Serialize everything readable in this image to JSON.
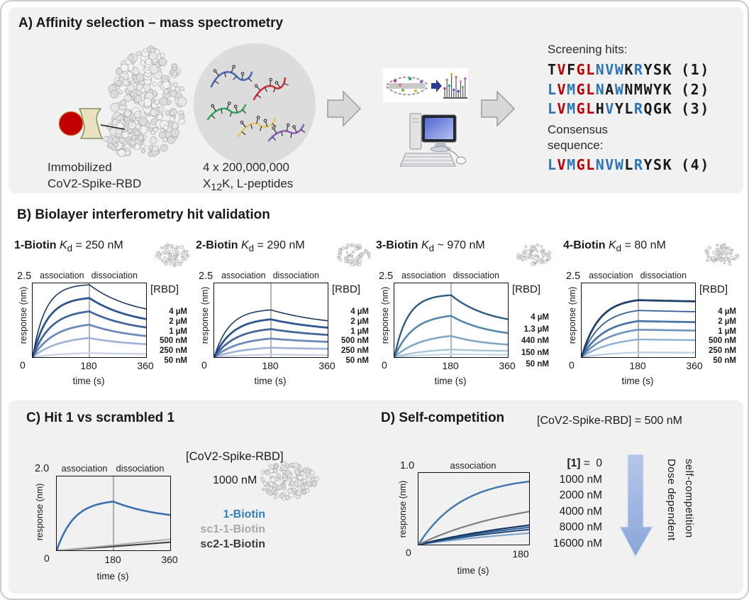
{
  "panelA": {
    "title": "A) Affinity selection – mass spectrometry",
    "immobilized_label": [
      "Immobilized",
      "CoV2-Spike-RBD"
    ],
    "library_count": "4 x 200,000,000",
    "library_x": "X",
    "library_sub": "12",
    "library_rest": "K, L-peptides",
    "screening_hits_label": "Screening hits:",
    "consensus_lines": [
      "Consensus",
      "sequence:"
    ],
    "residue_colors": {
      "k": "#1a1a1a",
      "r": "#c00000",
      "b": "#2e75b6"
    },
    "sequences": [
      {
        "residues": "TVFGLNVWKRYSK",
        "palette": "krkrrbbbkbkkk",
        "tag": "(1)"
      },
      {
        "residues": "LVMGLNAWNMWYK",
        "palette": "brbrrbkbkkkkk",
        "tag": "(2)"
      },
      {
        "residues": "LVMGLHVYLRQGK",
        "palette": "brbrrkbkkbkkk",
        "tag": "(3)"
      },
      {
        "residues": "LVMGLNVWLRYSK",
        "palette": "brbrrbbbkbkkk",
        "tag": "(4)"
      }
    ],
    "peptide_colors": [
      "#4a6cb0",
      "#cf3333",
      "#3aa76d",
      "#e5c86e",
      "#8f62b8"
    ]
  },
  "panelB": {
    "title": "B) Biolayer interferometry hit validation",
    "kd_symbol": "K",
    "kd_sub": "d"
  },
  "panelC": {
    "title": "C) Hit 1 vs scrambled 1",
    "rbd_label": "[CoV2-Spike-RBD]",
    "rbd_conc": "1000 nM",
    "legend": [
      {
        "label": "1-Biotin",
        "color": "#2e80bd"
      },
      {
        "label": "sc1-1-Biotin",
        "color": "#a8a8a8"
      },
      {
        "label": "sc2-1-Biotin",
        "color": "#3d3d3d"
      }
    ]
  },
  "panelD": {
    "title": "D) Self-competition",
    "rbd_text": "[CoV2-Spike-RBD] = 500 nM",
    "list_bold": "[1]",
    "list_eq": "=",
    "items": [
      "0",
      "1000 nM",
      "2000 nM",
      "4000 nM",
      "8000 nM",
      "16000 nM"
    ],
    "arrow_lines": [
      "Dose dependent",
      "self-competition"
    ]
  },
  "chart_data": [
    {
      "type": "line",
      "name": "1-Biotin",
      "kd_value": "= 250 nM",
      "phase_labels": [
        "association",
        "dissociation"
      ],
      "ylabel": "response (nm)",
      "xlabel": "time (s)",
      "ymax_label": "2.5",
      "ylim": [
        0,
        2.5
      ],
      "xlim": [
        0,
        360
      ],
      "xticks": [
        "0",
        "180",
        "360"
      ],
      "conc_header": "[RBD]",
      "tau_dissoc": 140,
      "series": [
        {
          "label": "4 µM",
          "color": "#1d3c63",
          "peak_180": 2.45,
          "end_360": 1.32,
          "tau_assoc": 40,
          "width": 1.6
        },
        {
          "label": "2 µM",
          "color": "#2f5590",
          "peak_180": 2.0,
          "end_360": 1.02,
          "tau_assoc": 48,
          "width": 2.8
        },
        {
          "label": "1 µM",
          "color": "#45679f",
          "peak_180": 1.55,
          "end_360": 0.8,
          "tau_assoc": 58,
          "width": 2.8
        },
        {
          "label": "500 nM",
          "color": "#6d8abc",
          "peak_180": 1.1,
          "end_360": 0.57,
          "tau_assoc": 70,
          "width": 2.8
        },
        {
          "label": "250 nM",
          "color": "#9fb1d4",
          "peak_180": 0.65,
          "end_360": 0.36,
          "tau_assoc": 85,
          "width": 2.6
        },
        {
          "label": "50 nM",
          "color": "#ccd3e8",
          "peak_180": 0.14,
          "end_360": 0.1,
          "tau_assoc": 110,
          "width": 2.4
        }
      ]
    },
    {
      "type": "line",
      "name": "2-Biotin",
      "kd_value": "= 290 nM",
      "phase_labels": [
        "association",
        "dissociation"
      ],
      "ylabel": "response (nm)",
      "xlabel": "time (s)",
      "ymax_label": "2.5",
      "ylim": [
        0,
        2.5
      ],
      "xlim": [
        0,
        360
      ],
      "xticks": [
        "0",
        "180",
        "360"
      ],
      "conc_header": "[RBD]",
      "tau_dissoc": 190,
      "series": [
        {
          "label": "4 µM",
          "color": "#1d3c63",
          "peak_180": 1.6,
          "end_360": 1.0,
          "tau_assoc": 48,
          "width": 1.6
        },
        {
          "label": "2 µM",
          "color": "#2f5590",
          "peak_180": 1.28,
          "end_360": 0.82,
          "tau_assoc": 58,
          "width": 2.8
        },
        {
          "label": "1 µM",
          "color": "#45679f",
          "peak_180": 0.95,
          "end_360": 0.63,
          "tau_assoc": 68,
          "width": 2.8
        },
        {
          "label": "500 nM",
          "color": "#6d8abc",
          "peak_180": 0.63,
          "end_360": 0.45,
          "tau_assoc": 82,
          "width": 2.8
        },
        {
          "label": "250 nM",
          "color": "#9fb1d4",
          "peak_180": 0.32,
          "end_360": 0.26,
          "tau_assoc": 100,
          "width": 2.6
        },
        {
          "label": "50 nM",
          "color": "#ccd3e8",
          "peak_180": 0.09,
          "end_360": 0.06,
          "tau_assoc": 130,
          "width": 2.4
        }
      ]
    },
    {
      "type": "line",
      "name": "3-Biotin",
      "kd_value": "~ 970 nM",
      "phase_labels": [
        "association",
        "dissociation"
      ],
      "ylabel": "response (nm)",
      "xlabel": "time (s)",
      "ymax_label": "2.5",
      "ylim": [
        0,
        2.5
      ],
      "xlim": [
        0,
        360
      ],
      "xticks": [
        "0",
        "180",
        "360"
      ],
      "conc_header": "[RBD]",
      "tau_dissoc": 120,
      "series": [
        {
          "label": "4 µM",
          "color": "#2c5d7f",
          "peak_180": 2.1,
          "end_360": 1.05,
          "tau_assoc": 42,
          "width": 2.4
        },
        {
          "label": "1.3 µM",
          "color": "#5488ab",
          "peak_180": 1.4,
          "end_360": 0.65,
          "tau_assoc": 60,
          "width": 2.6
        },
        {
          "label": "440 nM",
          "color": "#7fa8c3",
          "peak_180": 0.72,
          "end_360": 0.34,
          "tau_assoc": 85,
          "width": 2.6
        },
        {
          "label": "150 nM",
          "color": "#a9c6d9",
          "peak_180": 0.26,
          "end_360": 0.2,
          "tau_assoc": 110,
          "width": 2.4
        },
        {
          "label": "50 nM",
          "color": "#c6d9e6",
          "peak_180": 0.1,
          "end_360": 0.08,
          "tau_assoc": 140,
          "width": 2.2
        }
      ]
    },
    {
      "type": "line",
      "name": "4-Biotin",
      "kd_value": "= 80 nM",
      "phase_labels": [
        "association",
        "dissociation"
      ],
      "ylabel": "response (nm)",
      "xlabel": "time (s)",
      "ymax_label": "2.5",
      "ylim": [
        0,
        2.5
      ],
      "xlim": [
        0,
        360
      ],
      "xticks": [
        "0",
        "180",
        "360"
      ],
      "conc_header": "[RBD]",
      "tau_dissoc": 700,
      "series": [
        {
          "label": "4 µM",
          "color": "#1f4068",
          "peak_180": 1.93,
          "end_360": 1.75,
          "tau_assoc": 55,
          "width": 2.8
        },
        {
          "label": "2 µM",
          "color": "#3a5f94",
          "peak_180": 1.58,
          "end_360": 1.4,
          "tau_assoc": 62,
          "width": 1.8
        },
        {
          "label": "1 µM",
          "color": "#4d76a8",
          "peak_180": 1.22,
          "end_360": 1.07,
          "tau_assoc": 72,
          "width": 2.8
        },
        {
          "label": "500 nM",
          "color": "#6b92bf",
          "peak_180": 0.93,
          "end_360": 0.8,
          "tau_assoc": 85,
          "width": 2.6
        },
        {
          "label": "250 nM",
          "color": "#8fb0d2",
          "peak_180": 0.6,
          "end_360": 0.5,
          "tau_assoc": 100,
          "width": 2.4
        },
        {
          "label": "50 nM",
          "color": "#b9cfe4",
          "peak_180": 0.16,
          "end_360": 0.13,
          "tau_assoc": 120,
          "width": 2.2
        }
      ]
    },
    {
      "type": "line",
      "phase_labels": [
        "association",
        "dissociation"
      ],
      "ylabel": "response (nm)",
      "xlabel": "time (s)",
      "ymax_label": "2.0",
      "ylim": [
        0,
        2.0
      ],
      "xlim": [
        0,
        360
      ],
      "xticks": [
        "0",
        "180",
        "360"
      ],
      "tau_dissoc": 150,
      "series": [
        {
          "label": "1-Biotin",
          "color": "#3a6fb0",
          "peak_180": 1.32,
          "end_360": 0.8,
          "tau_assoc": 55,
          "width": 2.6
        },
        {
          "label": "sc1-1-Biotin",
          "color": "#b2b2b2",
          "end_360": 0.3,
          "width": 2.0,
          "shape": "rise"
        },
        {
          "label": "sc2-1-Biotin",
          "color": "#3d3d3d",
          "end_360": 0.22,
          "width": 2.0,
          "shape": "rise"
        }
      ]
    },
    {
      "type": "line",
      "phase_labels": [
        "association"
      ],
      "ylabel": "response (nm)",
      "xlabel": "time (s)",
      "ymax_label": "1.0",
      "ylim": [
        0,
        1.0
      ],
      "xlim": [
        0,
        180
      ],
      "xticks": [
        "0",
        "180"
      ],
      "series": [
        {
          "label": "0",
          "color": "#3c78ad",
          "peak_180": 0.88,
          "tau_assoc": 70,
          "width": 2.4
        },
        {
          "label": "1000 nM",
          "color": "#808080",
          "peak_180": 0.46,
          "tau_assoc": 170,
          "width": 2.2
        },
        {
          "label": "2000 nM",
          "color": "#17375e",
          "peak_180": 0.27,
          "tau_assoc": 240,
          "width": 2.2
        },
        {
          "label": "4000 nM",
          "color": "#2e5f9e",
          "peak_180": 0.24,
          "tau_assoc": 240,
          "width": 2.0
        },
        {
          "label": "8000 nM",
          "color": "#1f4e79",
          "peak_180": 0.21,
          "tau_assoc": 260,
          "width": 2.0
        },
        {
          "label": "16000 nM",
          "color": "#7ba2cc",
          "peak_180": 0.16,
          "tau_assoc": 280,
          "width": 2.0
        }
      ]
    }
  ]
}
